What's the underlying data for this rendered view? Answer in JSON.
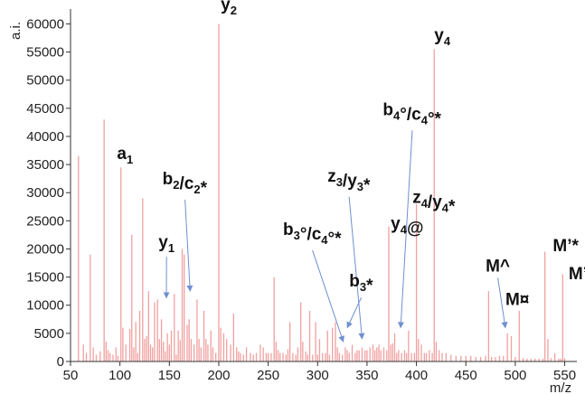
{
  "chart_data": {
    "type": "bar",
    "title": "",
    "xlabel": "m/z",
    "ylabel": "a.i.",
    "xlim": [
      50,
      555
    ],
    "ylim": [
      0,
      62000
    ],
    "x_ticks": [
      50,
      100,
      150,
      200,
      250,
      300,
      350,
      400,
      450,
      500,
      550
    ],
    "y_ticks": [
      0,
      5000,
      10000,
      15000,
      20000,
      25000,
      30000,
      35000,
      40000,
      45000,
      50000,
      55000,
      60000
    ],
    "bar_color": "#f0a0a0",
    "arrow_color": "#6f8fd0",
    "grid": false,
    "peaks": {
      "mz": [
        58,
        63,
        66,
        70,
        73,
        76,
        80,
        84,
        86,
        88,
        90,
        93,
        96,
        98,
        101,
        103,
        106,
        110,
        112,
        114,
        116,
        118,
        120,
        123,
        125,
        127,
        129,
        131,
        133,
        135,
        138,
        140,
        142,
        144,
        146,
        148,
        150,
        152,
        155,
        157,
        159,
        161,
        163,
        165,
        168,
        170,
        172,
        175,
        178,
        180,
        182,
        185,
        187,
        189,
        192,
        194,
        197,
        200,
        202,
        205,
        208,
        212,
        215,
        218,
        220,
        222,
        225,
        228,
        232,
        235,
        238,
        242,
        245,
        248,
        250,
        253,
        256,
        258,
        260,
        262,
        265,
        268,
        270,
        272,
        275,
        278,
        280,
        283,
        285,
        288,
        290,
        292,
        295,
        298,
        300,
        302,
        305,
        308,
        310,
        312,
        315,
        318,
        320,
        322,
        325,
        328,
        330,
        332,
        335,
        338,
        340,
        342,
        345,
        348,
        350,
        353,
        356,
        358,
        360,
        362,
        364,
        367,
        370,
        372,
        374,
        376,
        378,
        380,
        382,
        385,
        388,
        390,
        392,
        395,
        398,
        400,
        402,
        405,
        408,
        410,
        413,
        416,
        418,
        420,
        423,
        426,
        430,
        435,
        440,
        445,
        450,
        455,
        460,
        465,
        470,
        473,
        476,
        480,
        484,
        488,
        492,
        496,
        500,
        504,
        508,
        512,
        516,
        520,
        524,
        528,
        530,
        533,
        536,
        540,
        544,
        546,
        548,
        550
      ],
      "intensity": [
        36500,
        3000,
        1500,
        19000,
        2500,
        1200,
        1800,
        43000,
        3500,
        2000,
        1500,
        1200,
        2500,
        1000,
        34500,
        6000,
        3000,
        5800,
        22500,
        2500,
        7000,
        1500,
        9000,
        29000,
        4000,
        4500,
        12500,
        3000,
        2500,
        10500,
        11000,
        4000,
        7500,
        3500,
        1800,
        5000,
        3000,
        5500,
        12000,
        1200,
        5500,
        3800,
        20000,
        19000,
        6500,
        7500,
        4000,
        3000,
        11000,
        4000,
        2500,
        9000,
        4000,
        3000,
        5500,
        2500,
        1500,
        60000,
        6000,
        5000,
        4000,
        3000,
        8500,
        2500,
        1800,
        1500,
        1200,
        2500,
        1500,
        1200,
        1500,
        3000,
        2500,
        1500,
        1500,
        1500,
        15000,
        3500,
        2000,
        1500,
        1500,
        1200,
        2200,
        7000,
        1500,
        1200,
        2500,
        10500,
        3500,
        1800,
        1200,
        9000,
        1200,
        7000,
        1200,
        4000,
        1500,
        1500,
        5500,
        1200,
        6000,
        7000,
        2500,
        1500,
        1200,
        2500,
        2000,
        1500,
        3000,
        1500,
        2000,
        2000,
        2500,
        2000,
        2000,
        2500,
        3000,
        2000,
        2500,
        3000,
        2000,
        2500,
        2000,
        24000,
        3000,
        3200,
        5000,
        1500,
        2000,
        1500,
        2000,
        1500,
        5500,
        1500,
        1500,
        28000,
        4000,
        3000,
        1500,
        1500,
        2000,
        1500,
        55500,
        3500,
        2000,
        1500,
        1500,
        1200,
        1000,
        1000,
        1000,
        1000,
        800,
        800,
        1000,
        12500,
        800,
        800,
        1000,
        1000,
        5000,
        4500,
        800,
        9000,
        600,
        500,
        500,
        500,
        500,
        500,
        19500,
        4000,
        600,
        1500,
        500,
        500,
        15500,
        600,
        500
      ]
    },
    "annotations": [
      {
        "label": "y",
        "sub": "2",
        "suffix": "",
        "x": 202,
        "y": 62500
      },
      {
        "label": "y",
        "sub": "4",
        "suffix": "",
        "x": 418,
        "y": 57000
      },
      {
        "label": "a",
        "sub": "1",
        "suffix": "",
        "x": 97,
        "y": 36000
      },
      {
        "label": "b",
        "sub": "2",
        "suffix": "/c",
        "sub2": "2",
        "tail": "*",
        "x": 143,
        "y": 31500,
        "arrow_to": [
          171,
          12500
        ]
      },
      {
        "label": "y",
        "sub": "1",
        "suffix": "",
        "x": 139,
        "y": 20200,
        "arrow_to": [
          147,
          11300
        ]
      },
      {
        "label": "b",
        "sub": "4",
        "suffix": "°/c",
        "sub2": "4",
        "tail": "°*",
        "x": 366,
        "y": 43800,
        "arrow_to": [
          384,
          6000
        ]
      },
      {
        "label": "z",
        "sub": "3",
        "suffix": "/y",
        "sub2": "3",
        "tail": "*",
        "x": 310,
        "y": 32000,
        "arrow_to": [
          345,
          4000
        ]
      },
      {
        "label": "z",
        "sub": "4",
        "suffix": "/y",
        "sub2": "4",
        "tail": "*",
        "x": 396,
        "y": 28200
      },
      {
        "label": "y",
        "sub": "4",
        "suffix": "@",
        "x": 374,
        "y": 23500
      },
      {
        "label": "b",
        "sub": "3",
        "suffix": "°/c",
        "sub2": "4",
        "tail": "°*",
        "x": 265,
        "y": 22500,
        "arrow_to": [
          326,
          3500
        ]
      },
      {
        "label": "b",
        "sub": "3",
        "suffix": "*",
        "x": 332,
        "y": 13300,
        "arrow_to": [
          330,
          6000
        ]
      },
      {
        "label": "M^",
        "x": 470,
        "y": 16000,
        "arrow_to": [
          490,
          6000
        ]
      },
      {
        "label": "M¤",
        "x": 490,
        "y": 10000
      },
      {
        "label": "M’*",
        "x": 538,
        "y": 19600
      },
      {
        "label": "M’",
        "x": 554,
        "y": 14600
      }
    ]
  }
}
